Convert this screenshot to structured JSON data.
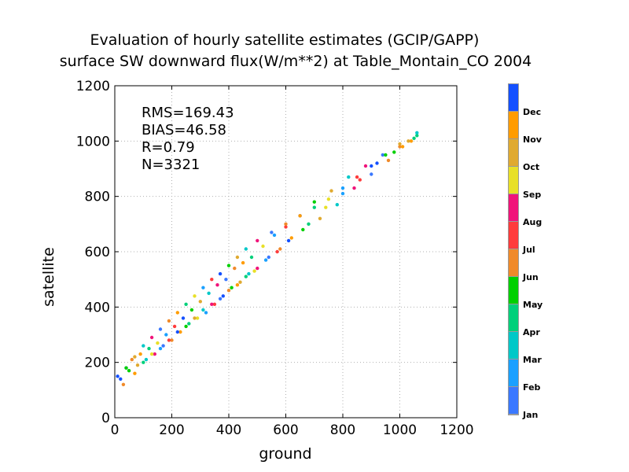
{
  "chart_data": {
    "type": "scatter",
    "title": "Evaluation of hourly satellite estimates (GCIP/GAPP)",
    "subtitle": "surface SW downward flux(W/m**2) at Table_Montain_CO 2004",
    "xlabel": "ground",
    "ylabel": "satellite",
    "xlim": [
      0,
      1200
    ],
    "ylim": [
      0,
      1200
    ],
    "xticks": [
      "0",
      "200",
      "400",
      "600",
      "800",
      "1000",
      "1200"
    ],
    "yticks": [
      "0",
      "200",
      "400",
      "600",
      "800",
      "1000",
      "1200"
    ],
    "grid": true,
    "stats": [
      "RMS=169.43",
      "BIAS=46.58",
      "R=0.79",
      "N=3321"
    ],
    "colorbar": {
      "labels": [
        "Jan",
        "Feb",
        "Mar",
        "Apr",
        "May",
        "Jun",
        "Jul",
        "Aug",
        "Sep",
        "Oct",
        "Nov",
        "Dec"
      ],
      "colors": [
        "#3a78ff",
        "#1aa0ff",
        "#00c8c8",
        "#00d07a",
        "#00d000",
        "#f08a2a",
        "#ff3c3c",
        "#f0147a",
        "#e8e028",
        "#e0aa30",
        "#ff9c00",
        "#1450ff"
      ]
    },
    "series": [
      {
        "x": [
          40,
          60,
          90,
          120,
          150,
          180,
          210,
          240,
          270,
          300,
          330,
          360,
          390,
          420,
          450,
          480,
          520,
          560,
          600,
          650,
          700,
          760,
          820,
          880,
          940,
          1000,
          1040,
          1060
        ],
        "y": [
          180,
          210,
          230,
          250,
          270,
          300,
          330,
          360,
          390,
          420,
          450,
          480,
          500,
          540,
          560,
          580,
          620,
          660,
          690,
          730,
          780,
          820,
          870,
          910,
          950,
          980,
          1000,
          1020
        ]
      },
      {
        "x": [
          20,
          50,
          80,
          110,
          140,
          170,
          200,
          230,
          260,
          290,
          320,
          350,
          380,
          410,
          440,
          470,
          500,
          540,
          580,
          620,
          680,
          740,
          800,
          860,
          920,
          980,
          1030
        ],
        "y": [
          140,
          170,
          190,
          210,
          230,
          260,
          280,
          310,
          340,
          360,
          380,
          410,
          440,
          470,
          490,
          520,
          540,
          580,
          610,
          650,
          700,
          760,
          810,
          860,
          920,
          960,
          1000
        ]
      },
      {
        "x": [
          30,
          70,
          100,
          130,
          160,
          190,
          220,
          250,
          280,
          310,
          340,
          370,
          400,
          430,
          460,
          490,
          530,
          570,
          610,
          660,
          720,
          780,
          840,
          900,
          960,
          1010,
          1050
        ],
        "y": [
          120,
          160,
          200,
          230,
          250,
          280,
          310,
          330,
          360,
          390,
          410,
          430,
          460,
          480,
          510,
          530,
          570,
          600,
          640,
          680,
          720,
          770,
          830,
          880,
          930,
          980,
          1010
        ]
      },
      {
        "x": [
          10,
          40,
          70,
          100,
          130,
          160,
          190,
          220,
          250,
          280,
          310,
          340,
          370,
          400,
          430,
          460,
          500,
          550,
          600,
          650,
          700,
          750,
          800,
          850,
          900,
          950,
          1000,
          1060
        ],
        "y": [
          150,
          180,
          220,
          260,
          290,
          320,
          350,
          380,
          410,
          440,
          470,
          500,
          520,
          550,
          580,
          610,
          640,
          670,
          700,
          730,
          760,
          790,
          830,
          870,
          910,
          950,
          990,
          1030
        ]
      }
    ]
  }
}
